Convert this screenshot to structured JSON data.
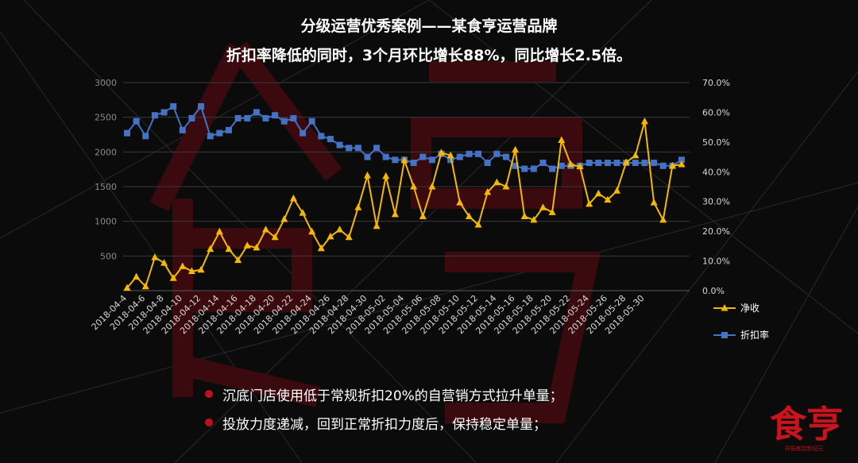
{
  "header": {
    "title": "分级运营优秀案例——某食亨运营品牌",
    "subtitle": "折扣率降低的同时，3个月环比增长88%，同比增长2.5倍。"
  },
  "bullets": [
    "沉底门店使用低于常规折扣20%的自营销方式拉升单量；",
    "投放力度递减，回到正常折扣力度后，保持稳定单量；"
  ],
  "logo": {
    "text": "食亨",
    "tagline": "开拓餐饮新纪元"
  },
  "colors": {
    "net": "#f5b800",
    "discount": "#4472c4",
    "accent": "#c0101a"
  },
  "chart_data": {
    "type": "line",
    "x_labels": [
      "2018-04-4",
      "2018-04-6",
      "2018-04-8",
      "2018-04-10",
      "2018-04-12",
      "2018-04-14",
      "2018-04-16",
      "2018-04-18",
      "2018-04-20",
      "2018-04-22",
      "2018-04-24",
      "2018-04-26",
      "2018-04-28",
      "2018-04-30",
      "2018-05-02",
      "2018-05-04",
      "2018-05-06",
      "2018-05-08",
      "2018-05-10",
      "2018-05-12",
      "2018-05-14",
      "2018-05-16",
      "2018-05-18",
      "2018-05-20",
      "2018-05-22",
      "2018-05-24",
      "2018-05-26",
      "2018-05-28",
      "2018-05-30"
    ],
    "y_left": {
      "ticks": [
        "3000",
        "2500",
        "2000",
        "1500",
        "1000",
        "500"
      ],
      "min": 0,
      "max": 3000
    },
    "y_right": {
      "ticks": [
        "70.0%",
        "60.0%",
        "50.0%",
        "40.0%",
        "30.0%",
        "20.0%",
        "10.0%",
        "0.0%"
      ],
      "min": 0,
      "max": 70
    },
    "legend_position": "right",
    "series": [
      {
        "name": "净收",
        "axis": "left",
        "values": [
          40,
          200,
          60,
          480,
          400,
          180,
          350,
          280,
          300,
          600,
          850,
          600,
          440,
          650,
          620,
          880,
          770,
          1030,
          1330,
          1120,
          850,
          610,
          780,
          880,
          770,
          1200,
          1660,
          930,
          1650,
          1100,
          1880,
          1500,
          1070,
          1500,
          1990,
          1950,
          1270,
          1070,
          950,
          1420,
          1560,
          1500,
          2030,
          1070,
          1020,
          1200,
          1130,
          2170,
          1820,
          1790,
          1250,
          1400,
          1310,
          1440,
          1850,
          1950,
          2440,
          1270,
          1020,
          1800,
          1820
        ]
      },
      {
        "name": "折扣率",
        "axis": "right",
        "values": [
          53.0,
          57.0,
          52.0,
          59.0,
          60.0,
          62.0,
          54.0,
          58.0,
          62.0,
          52.0,
          53.0,
          54.0,
          58.0,
          58.0,
          60.0,
          58.0,
          59.0,
          57.0,
          58.0,
          53.0,
          57.0,
          52.0,
          51.0,
          49.0,
          48.0,
          48.0,
          45.0,
          48.0,
          45.0,
          44.0,
          44.0,
          43.0,
          45.0,
          44.0,
          46.0,
          44.0,
          45.0,
          46.0,
          46.0,
          43.0,
          46.0,
          45.0,
          42.0,
          41.0,
          41.0,
          43.0,
          41.0,
          42.0,
          42.0,
          42.0,
          43.0,
          43.0,
          43.0,
          43.0,
          43.0,
          43.0,
          43.0,
          43.0,
          42.0,
          42.0,
          44.0
        ]
      }
    ]
  }
}
